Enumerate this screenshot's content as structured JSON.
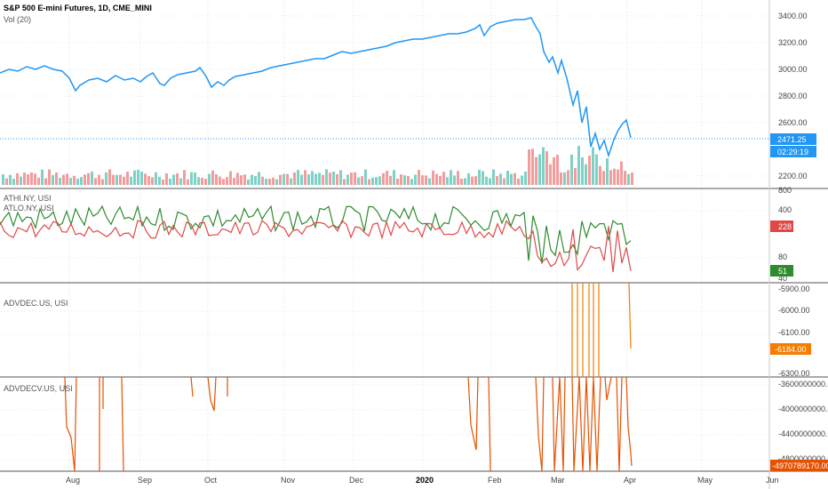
{
  "header": {
    "symbol": "S&P 500 E-mini Futures, 1D, CME_MINI",
    "volume": "Vol (20)"
  },
  "panes": {
    "p2_a": "ATHI.NY, USI",
    "p2_b": "ATLO.NY, USI",
    "p3": "ADVDEC.US, USI",
    "p4": "ADVDECV.US, USI"
  },
  "axis": {
    "main": [
      "3400.00",
      "3200.00",
      "3000.00",
      "2800.00",
      "2600.00",
      "2200.00"
    ],
    "p2": [
      "800",
      "400",
      "80",
      "40"
    ],
    "p3": [
      "-5900.00",
      "-6000.00",
      "-6100.00",
      "-6300.00"
    ],
    "p4": [
      "-3600000000.00",
      "-4000000000.00",
      "-4400000000.00",
      "-4800000000.00"
    ]
  },
  "tags": {
    "price": "2471.25",
    "time": "02:29:19",
    "athi": "228",
    "atlo": "51",
    "advdec": "-6184.00",
    "advdecv": "-4970789170.00"
  },
  "xaxis": [
    "Aug",
    "Sep",
    "Oct",
    "Nov",
    "Dec",
    "2020",
    "Feb",
    "Mar",
    "Apr",
    "May",
    "Jun"
  ],
  "colors": {
    "price": "#2196f3",
    "vol_up": "#7fd1c6",
    "vol_down": "#f29c9c",
    "athi": "#2e8b2e",
    "atlo": "#e04848",
    "advdec": "#f57c00",
    "advdecv": "#e65100"
  },
  "chart_data": [
    {
      "type": "line",
      "title": "S&P 500 E-mini Futures, 1D, CME_MINI",
      "ylim": [
        2150,
        3450
      ],
      "x": [
        "Aug",
        "Sep",
        "Oct",
        "Nov",
        "Dec",
        "2020",
        "Feb",
        "Mar",
        "Apr"
      ],
      "series": [
        {
          "values": [
            2920,
            2900,
            2960,
            3050,
            3150,
            3250,
            3300,
            2950,
            2471
          ]
        }
      ]
    },
    {
      "type": "line",
      "series": [
        {
          "name": "ATHI.NY, USI",
          "last": 228
        },
        {
          "name": "ATLO.NY, USI",
          "last": 51
        }
      ]
    },
    {
      "type": "line",
      "series": [
        {
          "name": "ADVDEC.US, USI",
          "last": -6184
        }
      ]
    },
    {
      "type": "line",
      "series": [
        {
          "name": "ADVDECV.US, USI",
          "last": -4970789170
        }
      ]
    }
  ]
}
